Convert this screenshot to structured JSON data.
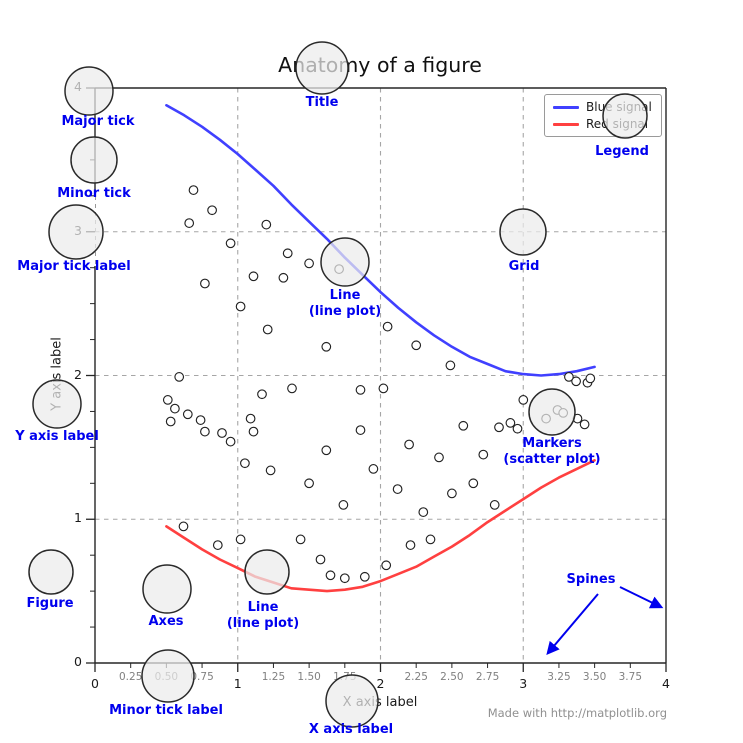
{
  "figure": {
    "title": "Anatomy of a figure",
    "credit": "Made with http://matplotlib.org"
  },
  "colors": {
    "blue_signal": "#4040ff",
    "red_signal": "#ff4040",
    "annotation": "#0000ee",
    "grid": "#a6a6a6",
    "axis": "#262626",
    "minor_tick_label": "#808080",
    "major_tick_label": "#1a1a1a",
    "scatter_edge": "#222222",
    "circle_stroke": "#2a2a2a"
  },
  "chart_data": {
    "type": "line+scatter",
    "title": "Anatomy of a figure",
    "xlabel": "X axis label",
    "ylabel": "Y axis label",
    "xlim": [
      0,
      4
    ],
    "ylim": [
      0,
      4
    ],
    "grid": {
      "style": "dashed",
      "x": [
        1,
        2,
        3
      ],
      "y": [
        1,
        2,
        3
      ]
    },
    "x_axis": {
      "major": {
        "values": [
          0,
          1,
          2,
          3,
          4
        ],
        "labels": [
          "0",
          "1",
          "2",
          "3",
          "4"
        ]
      },
      "minor": {
        "values": [
          0.25,
          0.5,
          0.75,
          1.25,
          1.5,
          1.75,
          2.25,
          2.5,
          2.75,
          3.25,
          3.5,
          3.75
        ],
        "labels": [
          "0.25",
          "0.50",
          "0.75",
          "1.25",
          "1.50",
          "1.75",
          "2.25",
          "2.50",
          "2.75",
          "3.25",
          "3.50",
          "3.75"
        ]
      }
    },
    "y_axis": {
      "major": {
        "values": [
          0,
          1,
          2,
          3,
          4
        ],
        "labels": [
          "0",
          "1",
          "2",
          "3",
          "4"
        ]
      },
      "minor": {
        "values": [
          0.25,
          0.5,
          0.75,
          1.25,
          1.5,
          1.75,
          2.25,
          2.5,
          2.75,
          3.25,
          3.5,
          3.75
        ]
      }
    },
    "legend": {
      "position": "upper right"
    },
    "series": [
      {
        "name": "Blue signal",
        "type": "line",
        "color": "#4040ff",
        "x": [
          0.5,
          0.625,
          0.75,
          0.875,
          1,
          1.125,
          1.25,
          1.375,
          1.5,
          1.625,
          1.75,
          1.875,
          2,
          2.125,
          2.25,
          2.375,
          2.5,
          2.625,
          2.75,
          2.875,
          3,
          3.125,
          3.25,
          3.375,
          3.5
        ],
        "y": [
          3.88,
          3.81,
          3.73,
          3.64,
          3.54,
          3.43,
          3.32,
          3.19,
          3.07,
          2.95,
          2.82,
          2.7,
          2.58,
          2.47,
          2.37,
          2.28,
          2.2,
          2.13,
          2.08,
          2.03,
          2.01,
          2.0,
          2.01,
          2.03,
          2.06
        ]
      },
      {
        "name": "Red signal",
        "type": "line",
        "color": "#ff4040",
        "x": [
          0.5,
          0.625,
          0.75,
          0.875,
          1,
          1.125,
          1.25,
          1.375,
          1.5,
          1.625,
          1.75,
          1.875,
          2,
          2.125,
          2.25,
          2.375,
          2.5,
          2.625,
          2.75,
          2.875,
          3,
          3.125,
          3.25,
          3.375,
          3.5
        ],
        "y": [
          0.95,
          0.87,
          0.79,
          0.72,
          0.66,
          0.6,
          0.56,
          0.52,
          0.51,
          0.5,
          0.51,
          0.53,
          0.57,
          0.62,
          0.67,
          0.74,
          0.81,
          0.89,
          0.98,
          1.06,
          1.14,
          1.22,
          1.29,
          1.35,
          1.41
        ]
      },
      {
        "name": "Scatter markers",
        "type": "scatter",
        "color": "#ffffff",
        "x": [
          0.51,
          0.56,
          0.53,
          0.65,
          0.74,
          0.77,
          0.89,
          0.95,
          1.09,
          1.11,
          1.17,
          1.38,
          1.05,
          1.23,
          0.69,
          0.66,
          0.82,
          0.77,
          1.11,
          0.59,
          1.02,
          1.21,
          1.35,
          1.5,
          1.32,
          1.71,
          2.05,
          3.0,
          2.91,
          2.96,
          2.83,
          3.37,
          3.45,
          3.47,
          3.16,
          3.24,
          3.28,
          3.38,
          3.43,
          3.32,
          0.62,
          0.86,
          1.02,
          1.44,
          1.58,
          1.65,
          1.75,
          1.89,
          2.04,
          2.21,
          2.35,
          1.5,
          1.62,
          1.74,
          1.86,
          1.95,
          2.02,
          2.12,
          2.2,
          2.3,
          2.41,
          2.5,
          2.58,
          2.65,
          2.72,
          2.8,
          1.2,
          0.95,
          1.62,
          2.25,
          2.49,
          1.86
        ],
        "y": [
          1.83,
          1.77,
          1.68,
          1.73,
          1.69,
          1.61,
          1.6,
          1.54,
          1.7,
          1.61,
          1.87,
          1.91,
          1.39,
          1.34,
          3.29,
          3.06,
          3.15,
          2.64,
          2.69,
          1.99,
          2.48,
          2.32,
          2.85,
          2.78,
          2.68,
          2.74,
          2.34,
          1.83,
          1.67,
          1.63,
          1.64,
          1.96,
          1.95,
          1.98,
          1.7,
          1.76,
          1.74,
          1.7,
          1.66,
          1.99,
          0.95,
          0.82,
          0.86,
          0.86,
          0.72,
          0.61,
          0.59,
          0.6,
          0.68,
          0.82,
          0.86,
          1.25,
          1.48,
          1.1,
          1.62,
          1.35,
          1.91,
          1.21,
          1.52,
          1.05,
          1.43,
          1.18,
          1.65,
          1.25,
          1.45,
          1.1,
          3.05,
          2.92,
          2.2,
          2.21,
          2.07,
          1.9
        ]
      }
    ]
  },
  "annotations": [
    {
      "id": "title",
      "lines": [
        "Title"
      ],
      "lx": 322,
      "ly": 95,
      "circle": [
        322,
        68,
        26
      ]
    },
    {
      "id": "major-tick",
      "lines": [
        "Major tick"
      ],
      "lx": 98,
      "ly": 114,
      "circle": [
        89,
        91,
        24
      ]
    },
    {
      "id": "minor-tick",
      "lines": [
        "Minor tick"
      ],
      "lx": 94,
      "ly": 186,
      "circle": [
        94,
        160,
        23
      ]
    },
    {
      "id": "major-tick-label",
      "lines": [
        "Major tick label"
      ],
      "lx": 74,
      "ly": 259,
      "circle": [
        76,
        232,
        27
      ]
    },
    {
      "id": "grid",
      "lines": [
        "Grid"
      ],
      "lx": 524,
      "ly": 259,
      "circle": [
        523,
        232,
        23
      ]
    },
    {
      "id": "line-plot-blue",
      "lines": [
        "Line",
        "(line plot)"
      ],
      "lx": 345,
      "ly": 288,
      "circle": [
        345,
        262,
        24
      ]
    },
    {
      "id": "legend",
      "lines": [
        "Legend"
      ],
      "lx": 622,
      "ly": 144,
      "circle": [
        625,
        116,
        22
      ]
    },
    {
      "id": "y-axis-label",
      "lines": [
        "Y axis label"
      ],
      "lx": 57,
      "ly": 429,
      "circle": [
        57,
        404,
        24
      ]
    },
    {
      "id": "markers",
      "lines": [
        "Markers",
        "(scatter plot)"
      ],
      "lx": 552,
      "ly": 436,
      "circle": [
        552,
        412,
        23
      ]
    },
    {
      "id": "figure",
      "lines": [
        "Figure"
      ],
      "lx": 50,
      "ly": 596,
      "circle": [
        51,
        572,
        22
      ]
    },
    {
      "id": "axes",
      "lines": [
        "Axes"
      ],
      "lx": 166,
      "ly": 614,
      "circle": [
        167,
        589,
        24
      ]
    },
    {
      "id": "line-plot-red",
      "lines": [
        "Line",
        "(line plot)"
      ],
      "lx": 263,
      "ly": 600,
      "circle": [
        267,
        572,
        22
      ]
    },
    {
      "id": "minor-tick-label",
      "lines": [
        "Minor tick label"
      ],
      "lx": 166,
      "ly": 703,
      "circle": [
        168,
        676,
        26
      ]
    },
    {
      "id": "x-axis-label",
      "lines": [
        "X axis label"
      ],
      "lx": 351,
      "ly": 722,
      "circle": [
        352,
        701,
        26
      ]
    },
    {
      "id": "spines",
      "lines": [
        "Spines"
      ],
      "lx": 591,
      "ly": 572,
      "circle": null,
      "arrows": [
        [
          598,
          594,
          548,
          653
        ],
        [
          620,
          587,
          661,
          607
        ]
      ]
    }
  ]
}
